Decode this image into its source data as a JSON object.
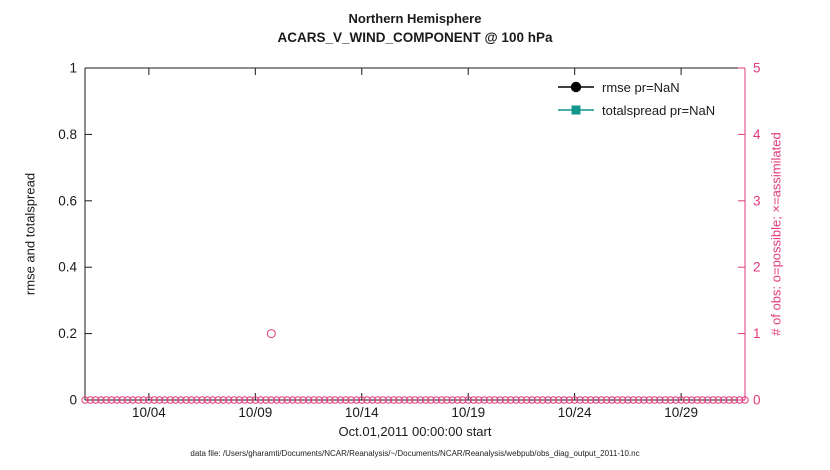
{
  "chart_data": {
    "type": "scatter",
    "title": "Northern Hemisphere",
    "subtitle": "ACARS_V_WIND_COMPONENT @ 100 hPa",
    "xlabel": "Oct.01,2011 00:00:00 start",
    "ylabel_left": "rmse and totalspread",
    "ylabel_right": "# of obs: o=possible; ×=assimilated",
    "caption": "data file: /Users/gharamti/Documents/NCAR/Reanalysis/~/Documents/NCAR/Reanalysis/webpub/obs_diag_output_2011-10.nc",
    "xlim_days": [
      0,
      31
    ],
    "ylim_left": [
      0,
      1
    ],
    "ylim_right": [
      0,
      5
    ],
    "grid": false,
    "legend_position": "upper-right-inside",
    "xticks": [
      {
        "day": 3,
        "label": "10/04"
      },
      {
        "day": 8,
        "label": "10/09"
      },
      {
        "day": 13,
        "label": "10/14"
      },
      {
        "day": 18,
        "label": "10/19"
      },
      {
        "day": 23,
        "label": "10/24"
      },
      {
        "day": 28,
        "label": "10/29"
      }
    ],
    "yticks_left": [
      "0",
      "0.2",
      "0.4",
      "0.6",
      "0.8",
      "1"
    ],
    "yticks_right": [
      "0",
      "1",
      "2",
      "3",
      "4",
      "5"
    ],
    "colors": {
      "axis_left": "#1a1a1a",
      "axis_right": "#e23a7c",
      "rmse": "#000000",
      "totalspread": "#12968b"
    },
    "legend": [
      {
        "label": "rmse pr=NaN",
        "marker": "filled-circle",
        "color": "#000000"
      },
      {
        "label": "totalspread pr=NaN",
        "marker": "filled-square",
        "color": "#12968b"
      }
    ],
    "series": [
      {
        "name": "possible-obs",
        "axis": "right",
        "marker": "open-circle",
        "color": "#e23a7c",
        "generator": {
          "start_day": 0,
          "step_days": 0.25,
          "count": 125,
          "value": 0
        },
        "extra_points": [
          {
            "day": 8.75,
            "value": 1
          }
        ]
      }
    ]
  }
}
